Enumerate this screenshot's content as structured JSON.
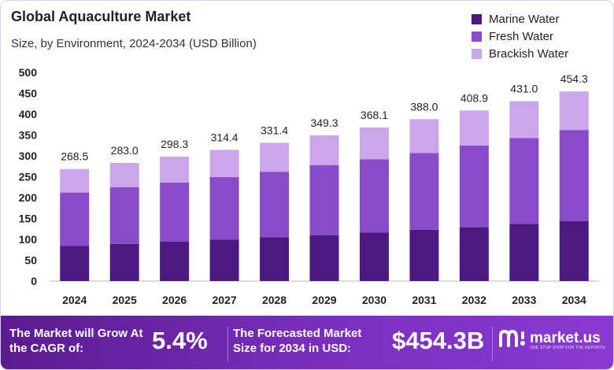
{
  "chart_data": {
    "type": "bar",
    "stacked": true,
    "title": "Global Aquaculture Market",
    "subtitle": "Size, by Environment, 2024-2034 (USD Billion)",
    "categories": [
      "2024",
      "2025",
      "2026",
      "2027",
      "2028",
      "2029",
      "2030",
      "2031",
      "2032",
      "2033",
      "2034"
    ],
    "series": [
      {
        "name": "Marine Water",
        "color": "#4a1a80",
        "values": [
          84,
          89,
          95,
          99,
          105,
          110,
          116,
          123,
          129,
          137,
          144
        ]
      },
      {
        "name": "Fresh Water",
        "color": "#8a4bc9",
        "values": [
          128,
          136,
          141,
          150,
          157,
          168,
          176,
          184,
          196,
          206,
          218
        ]
      },
      {
        "name": "Brackish Water",
        "color": "#cba6ea",
        "values": [
          56.5,
          58.0,
          62.3,
          65.4,
          69.4,
          71.3,
          76.1,
          81.0,
          83.9,
          88.0,
          92.3
        ]
      }
    ],
    "totals": [
      "268.5",
      "283.0",
      "298.3",
      "314.4",
      "331.4",
      "349.3",
      "368.1",
      "388.0",
      "408.9",
      "431.0",
      "454.3"
    ],
    "ylim": [
      0,
      500
    ],
    "yticks": [
      0,
      50,
      100,
      150,
      200,
      250,
      300,
      350,
      400,
      450,
      500
    ],
    "grid": false,
    "legend_position": "top-right"
  },
  "footer": {
    "cagr_label": "The Market will Grow At the CAGR of:",
    "cagr_value": "5.4%",
    "forecast_label": "The Forecasted Market Size for 2034 in USD:",
    "forecast_value": "$454.3B",
    "logo_text": "market.us",
    "logo_tagline": "ONE STOP SHOP FOR THE REPORTS"
  }
}
